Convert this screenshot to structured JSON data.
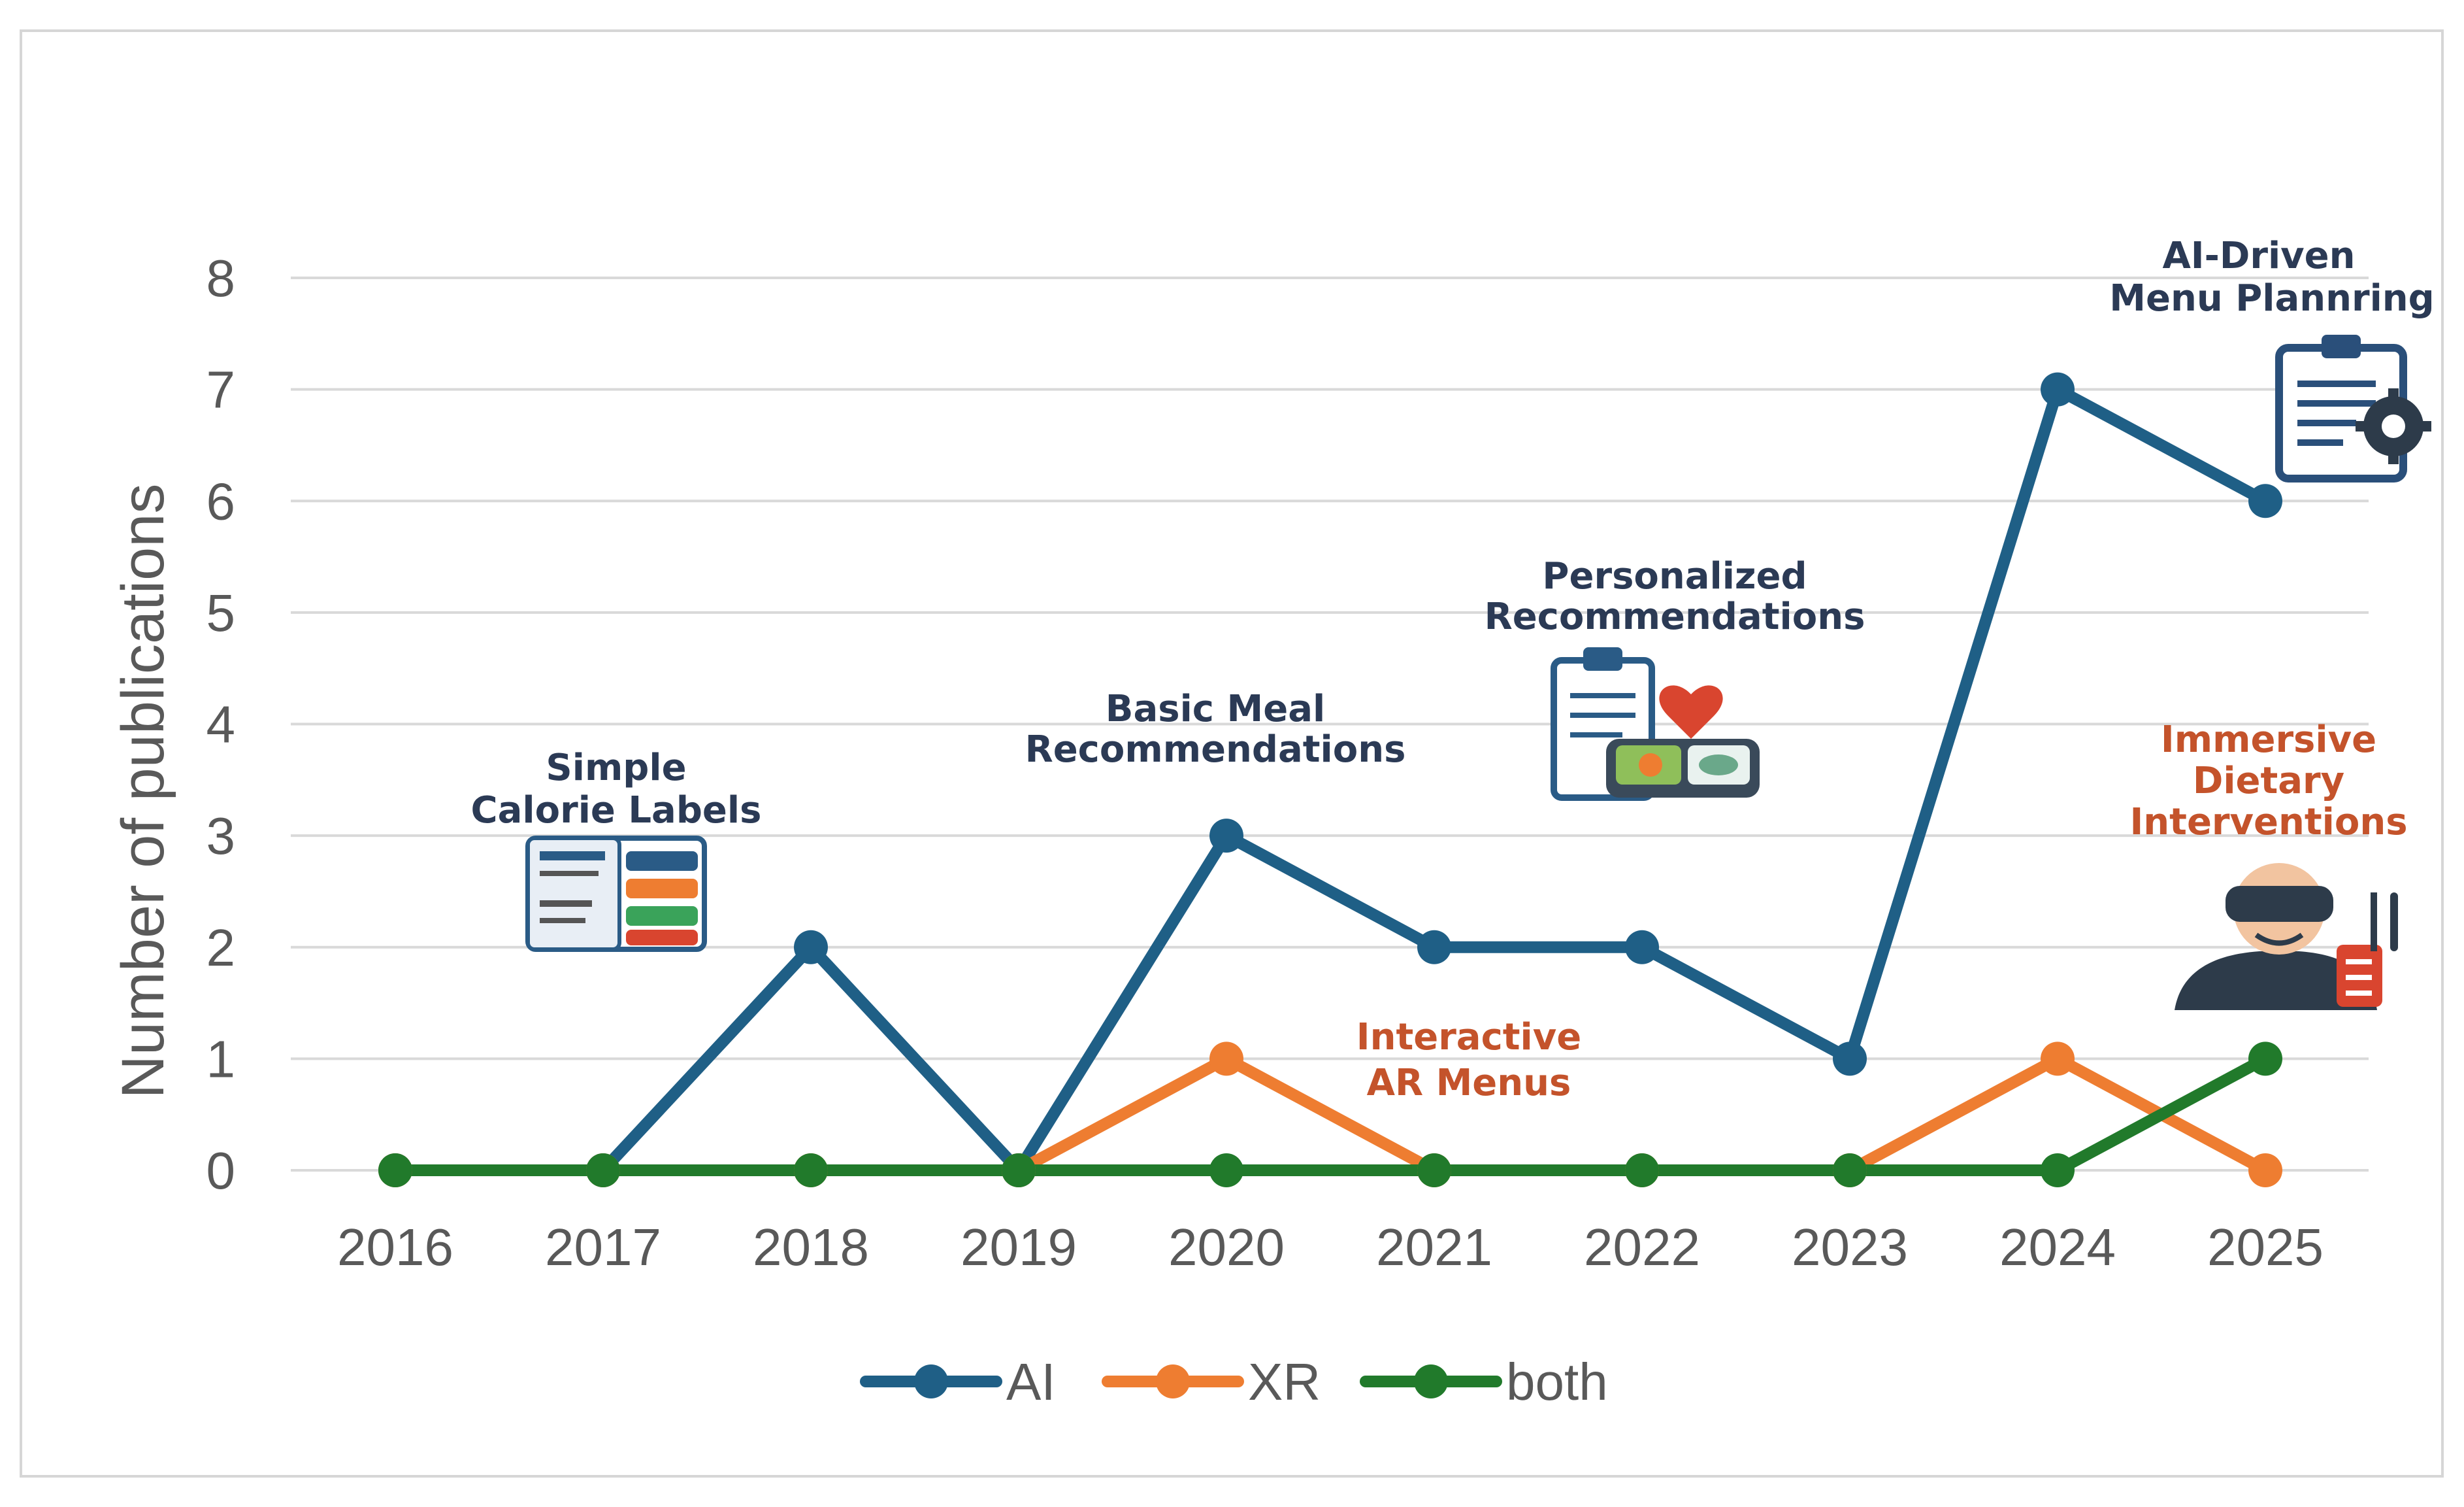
{
  "chart_data": {
    "type": "line",
    "title": "",
    "xlabel": "",
    "ylabel": "Number of publications",
    "categories": [
      "2016",
      "2017",
      "2018",
      "2019",
      "2020",
      "2021",
      "2022",
      "2023",
      "2024",
      "2025"
    ],
    "ylim": [
      0,
      8
    ],
    "yticks": [
      "0",
      "1",
      "2",
      "3",
      "4",
      "5",
      "6",
      "7",
      "8"
    ],
    "grid": true,
    "legend_position": "bottom",
    "series": [
      {
        "name": "AI",
        "color": "#1f5f86",
        "values": [
          0,
          0,
          2,
          0,
          3,
          2,
          2,
          1,
          7,
          6
        ]
      },
      {
        "name": "XR",
        "color": "#ee7d31",
        "values": [
          0,
          0,
          0,
          0,
          1,
          0,
          0,
          0,
          1,
          0
        ]
      },
      {
        "name": "both",
        "color": "#217a2b",
        "values": [
          0,
          0,
          0,
          0,
          0,
          0,
          0,
          0,
          0,
          1
        ]
      }
    ],
    "annotations": [
      {
        "id": "simple-calorie-labels",
        "lines": [
          "Simple",
          "Calorie Labels"
        ],
        "style": "dark",
        "icon": "calorie-label-icon"
      },
      {
        "id": "basic-meal-recommendations",
        "lines": [
          "Basic Meal",
          "Recommendations"
        ],
        "style": "dark",
        "icon": ""
      },
      {
        "id": "personalized-recommendations",
        "lines": [
          "Personalized",
          "Recommendations"
        ],
        "style": "dark",
        "icon": "clipboard-food-tray-icon"
      },
      {
        "id": "interactive-ar-menus",
        "lines": [
          "Interactive",
          "AR Menus"
        ],
        "style": "red",
        "icon": ""
      },
      {
        "id": "ai-driven-menu-planning",
        "lines": [
          "AI-Driven",
          "Menu Plannring"
        ],
        "style": "dark",
        "icon": "clipboard-gear-icon"
      },
      {
        "id": "immersive-dietary-interventions",
        "lines": [
          "Immersive",
          "Dietary",
          "Interventions"
        ],
        "style": "red",
        "icon": "vr-headset-person-icon"
      }
    ]
  }
}
